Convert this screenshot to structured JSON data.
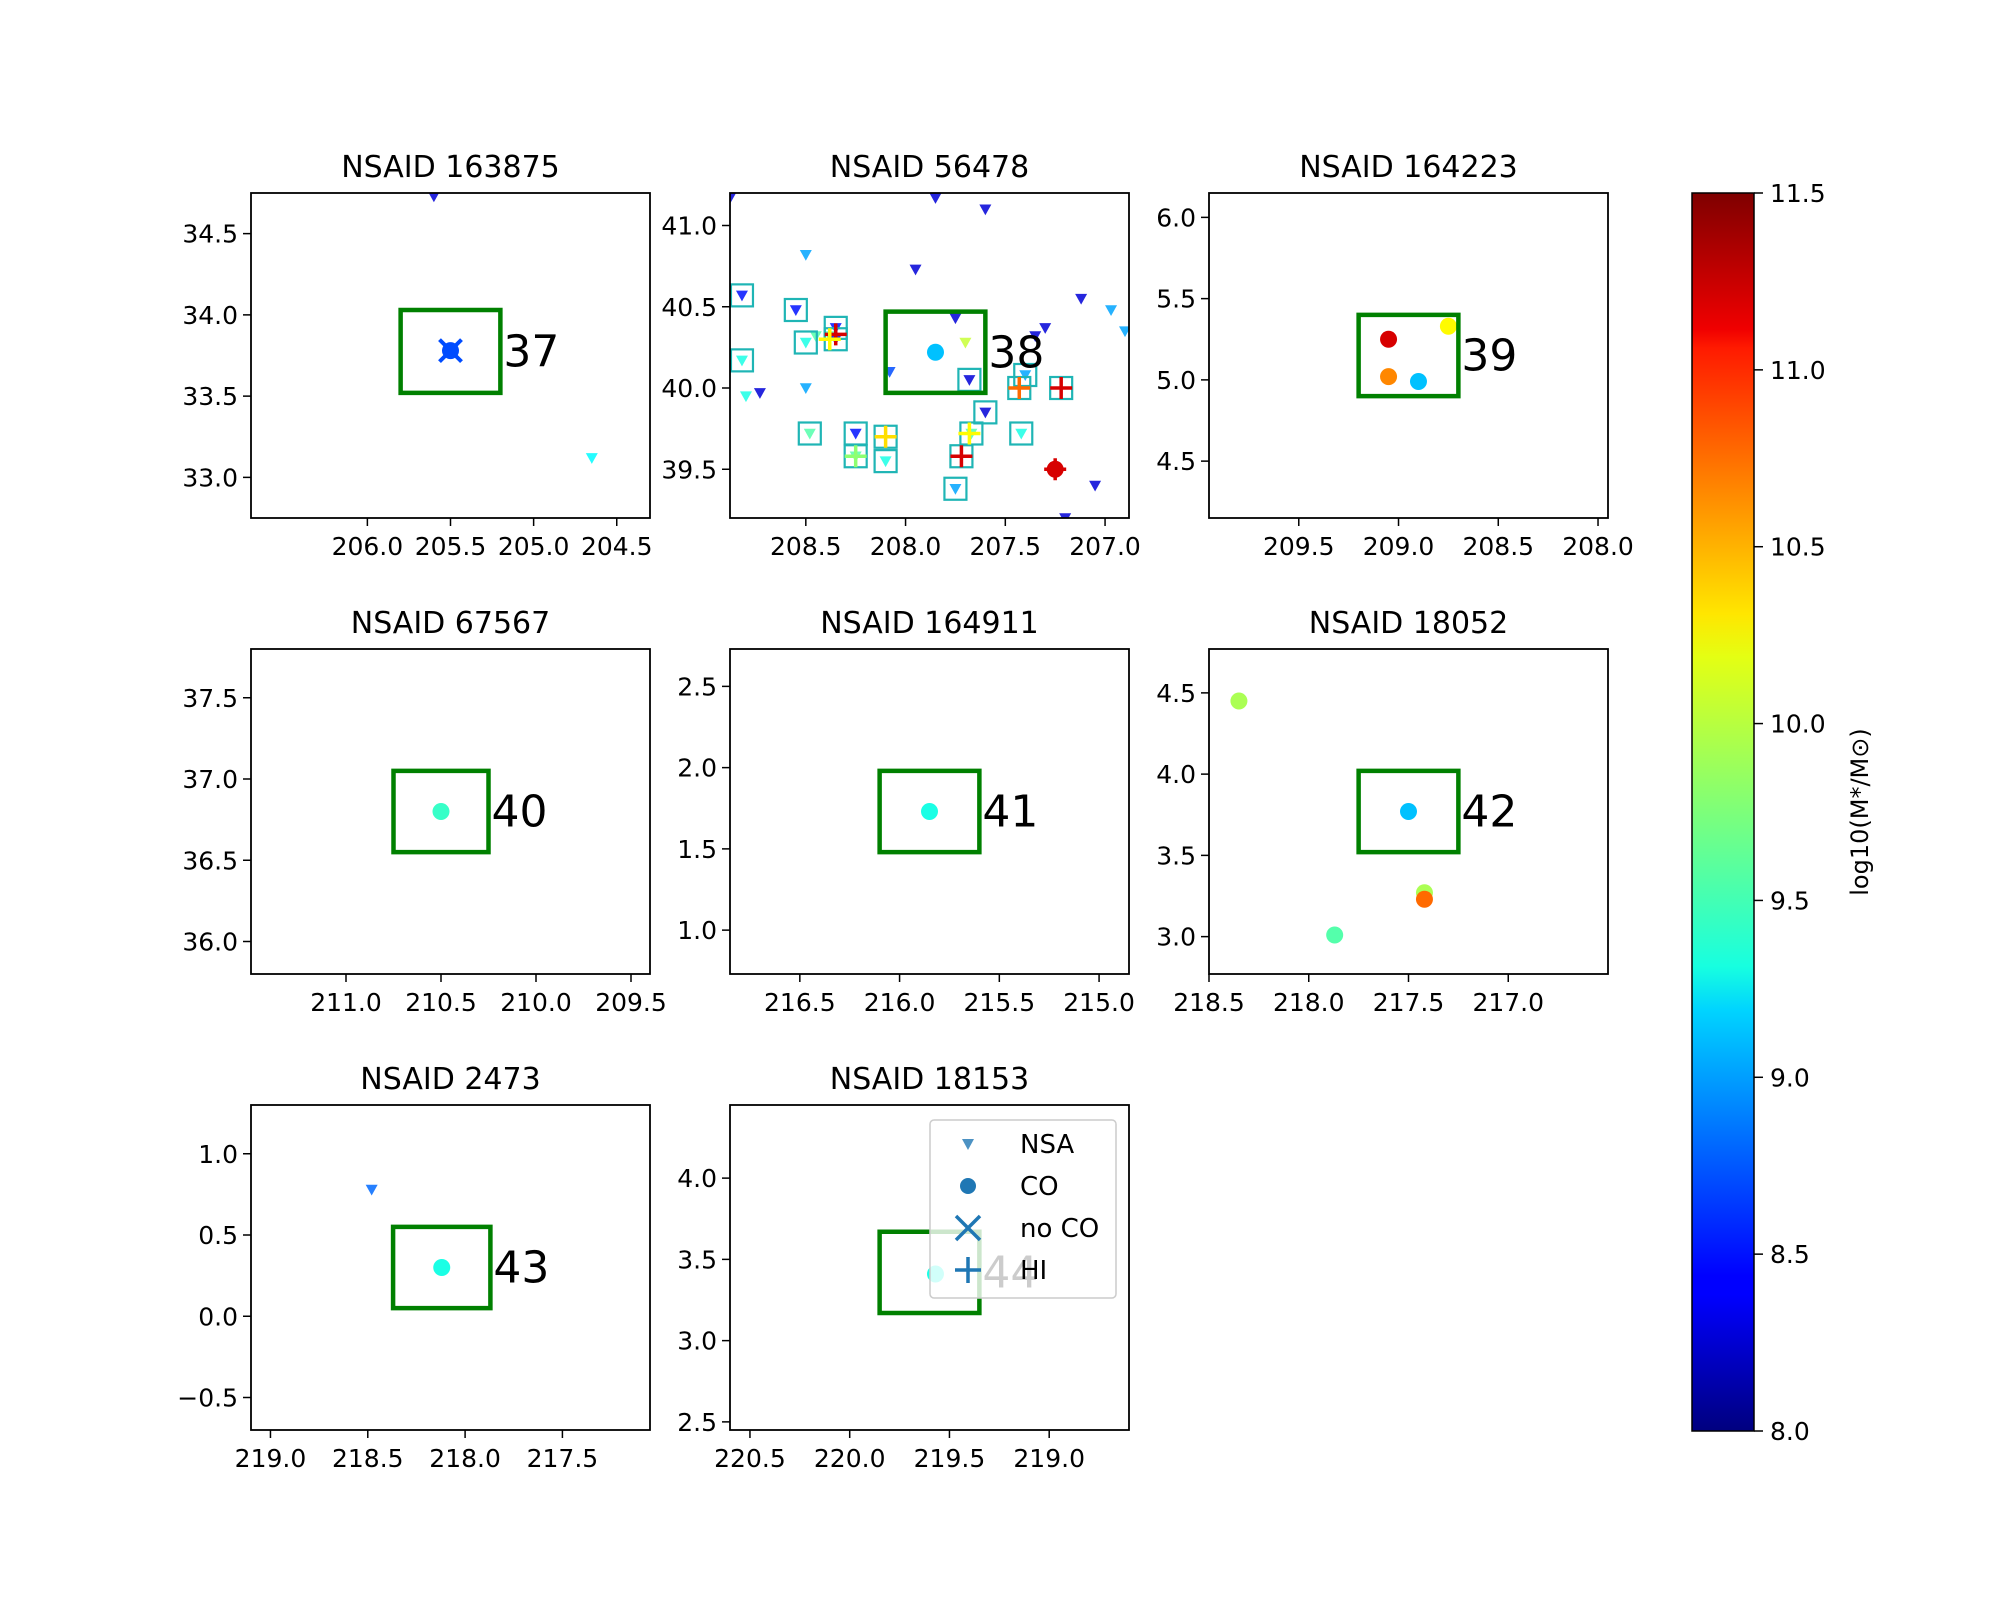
{
  "chart_data": {
    "type": "scatter",
    "markers": {
      "NSA": "triangle-down",
      "CO": "circle",
      "no CO": "x",
      "HI": "plus"
    },
    "legend": {
      "location": "upper right of panel NSAID 18153",
      "entries": [
        {
          "label": "NSA",
          "marker": "triangle-down"
        },
        {
          "label": "CO",
          "marker": "circle"
        },
        {
          "label": "no CO",
          "marker": "x"
        },
        {
          "label": "HI",
          "marker": "plus"
        }
      ],
      "color": "#1f77b4"
    },
    "colorbar": {
      "label": "log10(M*/M⊙)",
      "colormap": "jet",
      "range": [
        8.0,
        11.5
      ],
      "ticks": [
        "8.0",
        "8.5",
        "9.0",
        "9.5",
        "10.0",
        "10.5",
        "11.0",
        "11.5"
      ]
    },
    "box_color": "#008000",
    "panels": [
      {
        "title": "NSAID 163875",
        "field": "37",
        "xlim": [
          206.7,
          204.3
        ],
        "ylim": [
          32.75,
          34.75
        ],
        "xticks": [
          "206.0",
          "205.5",
          "205.0",
          "204.5"
        ],
        "yticks": [
          "33.0",
          "33.5",
          "34.0",
          "34.5"
        ],
        "box": {
          "x": [
            205.8,
            205.2
          ],
          "y": [
            33.52,
            34.03
          ]
        },
        "nsa": [
          {
            "x": 205.6,
            "y": 34.73,
            "m": 8.3
          },
          {
            "x": 204.65,
            "y": 33.12,
            "m": 9.3
          }
        ],
        "co": [
          {
            "x": 205.5,
            "y": 33.78,
            "m": 8.7
          }
        ],
        "noco": [
          {
            "x": 205.5,
            "y": 33.78,
            "m": 8.7
          }
        ],
        "hi": []
      },
      {
        "title": "NSAID 56478",
        "field": "38",
        "xlim": [
          208.88,
          206.88
        ],
        "ylim": [
          39.2,
          41.2
        ],
        "xticks": [
          "208.5",
          "208.0",
          "207.5",
          "207.0"
        ],
        "yticks": [
          "39.5",
          "40.0",
          "40.5",
          "41.0"
        ],
        "box": {
          "x": [
            208.1,
            207.6
          ],
          "y": [
            39.97,
            40.47
          ]
        },
        "nsa": [
          {
            "x": 208.88,
            "y": 41.17,
            "m": 8.3
          },
          {
            "x": 208.5,
            "y": 40.82,
            "m": 9.0
          },
          {
            "x": 207.85,
            "y": 41.17,
            "m": 8.3
          },
          {
            "x": 207.6,
            "y": 41.1,
            "m": 8.3
          },
          {
            "x": 207.95,
            "y": 40.73,
            "m": 8.3
          },
          {
            "x": 207.12,
            "y": 40.55,
            "m": 8.3
          },
          {
            "x": 206.97,
            "y": 40.48,
            "m": 9.0
          },
          {
            "x": 206.9,
            "y": 40.35,
            "m": 9.0
          },
          {
            "x": 207.75,
            "y": 40.43,
            "m": 8.3
          },
          {
            "x": 207.3,
            "y": 40.37,
            "m": 8.3
          },
          {
            "x": 207.35,
            "y": 40.32,
            "m": 8.3
          },
          {
            "x": 207.7,
            "y": 40.28,
            "m": 10.0
          },
          {
            "x": 208.08,
            "y": 40.1,
            "m": 8.7
          },
          {
            "x": 208.82,
            "y": 40.57,
            "m": 8.5
          },
          {
            "x": 208.82,
            "y": 40.17,
            "m": 9.4
          },
          {
            "x": 208.8,
            "y": 39.95,
            "m": 9.4
          },
          {
            "x": 208.73,
            "y": 39.97,
            "m": 8.3
          },
          {
            "x": 208.55,
            "y": 40.48,
            "m": 8.5
          },
          {
            "x": 208.5,
            "y": 40.28,
            "m": 9.4
          },
          {
            "x": 208.5,
            "y": 40.0,
            "m": 9.0
          },
          {
            "x": 208.48,
            "y": 39.72,
            "m": 9.6
          },
          {
            "x": 208.45,
            "y": 40.32,
            "m": 9.6
          },
          {
            "x": 208.38,
            "y": 40.32,
            "m": 9.6
          },
          {
            "x": 208.35,
            "y": 40.37,
            "m": 8.5
          },
          {
            "x": 208.35,
            "y": 40.3,
            "m": 8.5
          },
          {
            "x": 208.25,
            "y": 39.72,
            "m": 8.5
          },
          {
            "x": 208.25,
            "y": 39.58,
            "m": 9.6
          },
          {
            "x": 208.1,
            "y": 39.55,
            "m": 9.4
          },
          {
            "x": 207.68,
            "y": 40.05,
            "m": 8.3
          },
          {
            "x": 207.6,
            "y": 39.85,
            "m": 8.3
          },
          {
            "x": 207.75,
            "y": 39.38,
            "m": 9.0
          },
          {
            "x": 207.67,
            "y": 39.72,
            "m": 9.6
          },
          {
            "x": 207.42,
            "y": 39.72,
            "m": 9.4
          },
          {
            "x": 207.4,
            "y": 40.08,
            "m": 9.0
          },
          {
            "x": 207.2,
            "y": 39.2,
            "m": 8.3
          },
          {
            "x": 207.05,
            "y": 39.4,
            "m": 8.3
          }
        ],
        "nsa_boxed": [
          {
            "x": 208.82,
            "y": 40.57
          },
          {
            "x": 208.82,
            "y": 40.17
          },
          {
            "x": 208.55,
            "y": 40.48
          },
          {
            "x": 208.5,
            "y": 40.28
          },
          {
            "x": 208.48,
            "y": 39.72
          },
          {
            "x": 208.35,
            "y": 40.37
          },
          {
            "x": 208.35,
            "y": 40.3
          },
          {
            "x": 208.25,
            "y": 39.72
          },
          {
            "x": 208.25,
            "y": 39.58
          },
          {
            "x": 208.1,
            "y": 39.55
          },
          {
            "x": 207.68,
            "y": 40.05
          },
          {
            "x": 207.6,
            "y": 39.85
          },
          {
            "x": 207.75,
            "y": 39.38
          },
          {
            "x": 207.67,
            "y": 39.72
          },
          {
            "x": 207.42,
            "y": 39.72
          },
          {
            "x": 207.4,
            "y": 40.08
          },
          {
            "x": 207.43,
            "y": 40.0
          },
          {
            "x": 207.22,
            "y": 40.0
          },
          {
            "x": 207.72,
            "y": 39.58
          },
          {
            "x": 208.1,
            "y": 39.7
          }
        ],
        "co": [
          {
            "x": 207.85,
            "y": 40.22,
            "m": 9.1
          },
          {
            "x": 207.25,
            "y": 39.5,
            "m": 11.2
          }
        ],
        "noco": [],
        "hi": [
          {
            "x": 208.35,
            "y": 40.33,
            "m": 11.2
          },
          {
            "x": 208.38,
            "y": 40.3,
            "m": 10.2
          },
          {
            "x": 207.43,
            "y": 40.0,
            "m": 10.7
          },
          {
            "x": 207.22,
            "y": 40.0,
            "m": 11.2
          },
          {
            "x": 207.72,
            "y": 39.58,
            "m": 11.2
          },
          {
            "x": 207.68,
            "y": 39.72,
            "m": 10.2
          },
          {
            "x": 208.1,
            "y": 39.7,
            "m": 10.3
          },
          {
            "x": 208.25,
            "y": 39.58,
            "m": 9.8
          },
          {
            "x": 207.25,
            "y": 39.5,
            "m": 11.2
          }
        ]
      },
      {
        "title": "NSAID 164223",
        "field": "39",
        "xlim": [
          209.95,
          207.95
        ],
        "ylim": [
          4.15,
          6.15
        ],
        "xticks": [
          "209.5",
          "209.0",
          "208.5",
          "208.0"
        ],
        "yticks": [
          "4.5",
          "5.0",
          "5.5",
          "6.0"
        ],
        "box": {
          "x": [
            209.2,
            208.7
          ],
          "y": [
            4.9,
            5.4
          ]
        },
        "nsa": [],
        "co": [
          {
            "x": 209.05,
            "y": 5.25,
            "m": 11.2
          },
          {
            "x": 209.05,
            "y": 5.02,
            "m": 10.6
          },
          {
            "x": 208.9,
            "y": 4.99,
            "m": 9.1
          },
          {
            "x": 208.75,
            "y": 5.33,
            "m": 10.2
          }
        ],
        "noco": [],
        "hi": []
      },
      {
        "title": "NSAID 67567",
        "field": "40",
        "xlim": [
          211.5,
          209.4
        ],
        "ylim": [
          35.8,
          37.8
        ],
        "xticks": [
          "211.0",
          "210.5",
          "210.0",
          "209.5"
        ],
        "yticks": [
          "36.0",
          "36.5",
          "37.0",
          "37.5"
        ],
        "box": {
          "x": [
            210.75,
            210.25
          ],
          "y": [
            36.55,
            37.05
          ]
        },
        "nsa": [],
        "co": [
          {
            "x": 210.5,
            "y": 36.8,
            "m": 9.5
          }
        ],
        "noco": [],
        "hi": []
      },
      {
        "title": "NSAID 164911",
        "field": "41",
        "xlim": [
          216.85,
          214.85
        ],
        "ylim": [
          0.73,
          2.73
        ],
        "xticks": [
          "216.5",
          "216.0",
          "215.5",
          "215.0"
        ],
        "yticks": [
          "1.0",
          "1.5",
          "2.0",
          "2.5"
        ],
        "box": {
          "x": [
            216.1,
            215.6
          ],
          "y": [
            1.48,
            1.98
          ]
        },
        "nsa": [],
        "co": [
          {
            "x": 215.85,
            "y": 1.73,
            "m": 9.4
          }
        ],
        "noco": [],
        "hi": []
      },
      {
        "title": "NSAID 18052",
        "field": "42",
        "xlim": [
          218.5,
          216.5
        ],
        "ylim": [
          2.77,
          4.77
        ],
        "xticks": [
          "218.5",
          "218.0",
          "217.5",
          "217.0"
        ],
        "yticks": [
          "3.0",
          "3.5",
          "4.0",
          "4.5"
        ],
        "box": {
          "x": [
            217.75,
            217.25
          ],
          "y": [
            3.52,
            4.02
          ]
        },
        "nsa": [],
        "co": [
          {
            "x": 218.35,
            "y": 4.45,
            "m": 9.9
          },
          {
            "x": 217.5,
            "y": 3.77,
            "m": 9.1
          },
          {
            "x": 217.42,
            "y": 3.27,
            "m": 9.9
          },
          {
            "x": 217.42,
            "y": 3.23,
            "m": 10.7
          },
          {
            "x": 217.87,
            "y": 3.01,
            "m": 9.6
          }
        ],
        "noco": [],
        "hi": []
      },
      {
        "title": "NSAID 2473",
        "field": "43",
        "xlim": [
          219.1,
          217.05
        ],
        "ylim": [
          -0.7,
          1.3
        ],
        "xticks": [
          "219.0",
          "218.5",
          "218.0",
          "217.5"
        ],
        "yticks": [
          "−0.5",
          "0.0",
          "0.5",
          "1.0"
        ],
        "box": {
          "x": [
            218.37,
            217.87
          ],
          "y": [
            0.05,
            0.55
          ]
        },
        "nsa": [
          {
            "x": 218.48,
            "y": 0.78,
            "m": 8.8
          }
        ],
        "co": [
          {
            "x": 218.12,
            "y": 0.3,
            "m": 9.4
          }
        ],
        "noco": [],
        "hi": []
      },
      {
        "title": "NSAID 18153",
        "field": "44",
        "xlim": [
          220.6,
          218.6
        ],
        "ylim": [
          2.45,
          4.45
        ],
        "xticks": [
          "220.5",
          "220.0",
          "219.5",
          "219.0"
        ],
        "yticks": [
          "2.5",
          "3.0",
          "3.5",
          "4.0"
        ],
        "box": {
          "x": [
            219.85,
            219.35
          ],
          "y": [
            3.17,
            3.67
          ]
        },
        "nsa": [],
        "co": [
          {
            "x": 219.57,
            "y": 3.41,
            "m": 9.4
          }
        ],
        "noco": [],
        "hi": []
      }
    ]
  }
}
